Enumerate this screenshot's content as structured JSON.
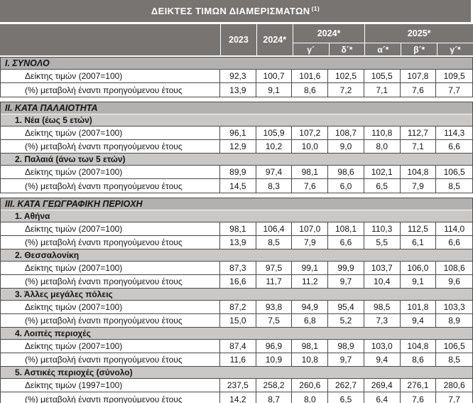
{
  "title": "ΔΕΙΚΤΕΣ ΤΙΜΩΝ ΔΙΑΜΕΡΙΣΜΑΤΩΝ",
  "title_footnote": "(1)",
  "columns": {
    "year_2023": "2023",
    "year_2024": "2024*",
    "group_2024": "2024*",
    "group_2025": "2025*",
    "quarters": [
      "γ´",
      "δ´*",
      "α´*",
      "β´*",
      "γ´*"
    ]
  },
  "colors": {
    "header_bg": "#777472",
    "section_heading_bg": "#b3b1af",
    "subsection_heading_bg": "#cac8c6",
    "border": "#4a4a4a",
    "header_text": "#ffffff"
  },
  "sections": [
    {
      "heading": "I. ΣΥΝΟΛΟ",
      "groups": [
        {
          "subheading": null,
          "rows": [
            {
              "label": "Δείκτης τιμών (2007=100)",
              "values": [
                "92,3",
                "100,7",
                "101,6",
                "102,5",
                "105,5",
                "107,8",
                "109,5"
              ]
            },
            {
              "label": "(%) μεταβολή έναντι προηγούμενου έτους",
              "values": [
                "13,9",
                "9,1",
                "8,6",
                "7,2",
                "7,1",
                "7,6",
                "7,7"
              ]
            }
          ]
        }
      ]
    },
    {
      "heading": "II. ΚΑΤΑ ΠΑΛΑΙΟΤΗΤΑ",
      "groups": [
        {
          "subheading": "1.  Νέα (έως 5 ετών)",
          "rows": [
            {
              "label": "Δείκτης τιμών (2007=100)",
              "values": [
                "96,1",
                "105,9",
                "107,2",
                "108,7",
                "110,8",
                "112,7",
                "114,3"
              ]
            },
            {
              "label": "(%) μεταβολή έναντι προηγούμενου έτους",
              "values": [
                "12,9",
                "10,2",
                "10,0",
                "9,0",
                "8,0",
                "7,1",
                "6,6"
              ]
            }
          ]
        },
        {
          "subheading": "2. Παλαιά (άνω των 5 ετών)",
          "rows": [
            {
              "label": "Δείκτης τιμών (2007=100)",
              "values": [
                "89,9",
                "97,4",
                "98,1",
                "98,6",
                "102,1",
                "104,8",
                "106,5"
              ]
            },
            {
              "label": "(%) μεταβολή έναντι προηγούμενου έτους",
              "values": [
                "14,5",
                "8,3",
                "7,6",
                "6,0",
                "6,5",
                "7,9",
                "8,5"
              ]
            }
          ]
        }
      ]
    },
    {
      "heading": "III. ΚΑΤΑ ΓΕΩΓΡΑΦΙΚΗ ΠΕΡΙΟΧΗ",
      "groups": [
        {
          "subheading": "1.  Αθήνα",
          "rows": [
            {
              "label": "Δείκτης τιμών (2007=100)",
              "values": [
                "98,1",
                "106,4",
                "107,0",
                "108,1",
                "110,3",
                "112,5",
                "114,0"
              ]
            },
            {
              "label": "(%) μεταβολή έναντι προηγούμενου έτους",
              "values": [
                "13,9",
                "8,5",
                "7,9",
                "6,6",
                "5,5",
                "6,1",
                "6,6"
              ]
            }
          ]
        },
        {
          "subheading": "2.  Θεσσαλονίκη",
          "rows": [
            {
              "label": "Δείκτης τιμών (2007=100)",
              "values": [
                "87,3",
                "97,5",
                "99,1",
                "99,9",
                "103,7",
                "106,0",
                "108,6"
              ]
            },
            {
              "label": "(%) μεταβολή έναντι προηγούμενου έτους",
              "values": [
                "16,6",
                "11,7",
                "11,2",
                "9,7",
                "10,4",
                "9,1",
                "9,6"
              ]
            }
          ]
        },
        {
          "subheading": "3.  Άλλες μεγάλες πόλεις",
          "rows": [
            {
              "label": "Δείκτης τιμών (2007=100)",
              "values": [
                "87,2",
                "93,8",
                "94,9",
                "95,4",
                "98,5",
                "101,8",
                "103,3"
              ]
            },
            {
              "label": "(%) μεταβολή έναντι προηγούμενου έτους",
              "values": [
                "15,0",
                "7,5",
                "6,8",
                "5,2",
                "7,3",
                "9,4",
                "8,9"
              ]
            }
          ]
        },
        {
          "subheading": "4.  Λοιπές περιοχές",
          "rows": [
            {
              "label": "Δείκτης τιμών (2007=100)",
              "values": [
                "87,4",
                "96,9",
                "98,1",
                "98,9",
                "103,0",
                "104,8",
                "106,5"
              ]
            },
            {
              "label": "(%) μεταβολή έναντι προηγούμενου έτους",
              "values": [
                "11,6",
                "10,9",
                "10,8",
                "9,7",
                "9,4",
                "8,6",
                "8,5"
              ]
            }
          ]
        },
        {
          "subheading": "5.  Αστικές περιοχές (σύνολο)",
          "rows": [
            {
              "label": "Δείκτης τιμών (1997=100)",
              "values": [
                "237,5",
                "258,2",
                "260,6",
                "262,7",
                "269,4",
                "276,1",
                "280,6"
              ]
            },
            {
              "label": "(%) μεταβολή έναντι προηγούμενου έτους",
              "values": [
                "14,2",
                "8,7",
                "8,0",
                "6,5",
                "6,4",
                "7,6",
                "7,7"
              ]
            }
          ]
        }
      ]
    }
  ]
}
